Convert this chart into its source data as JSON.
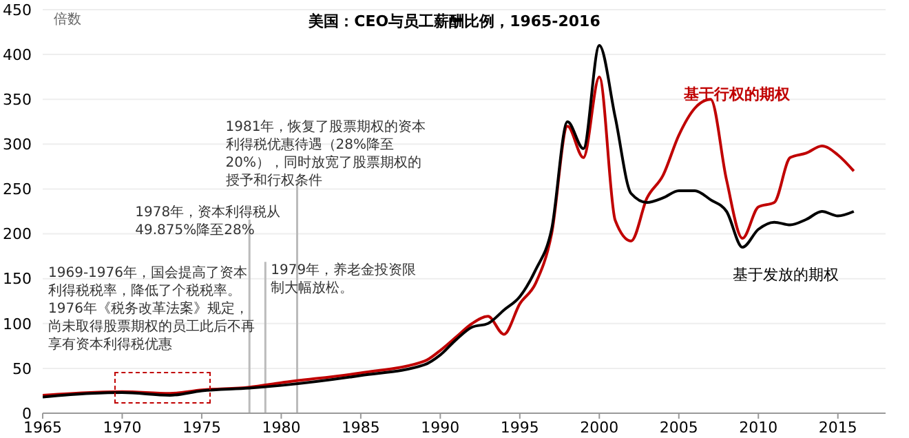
{
  "chart_data": {
    "type": "line",
    "title": "美国：CEO与员工薪酬比例，1965-2016",
    "ylabel": "倍数",
    "x": [
      1965,
      1968,
      1970,
      1973,
      1975,
      1978,
      1980,
      1985,
      1989,
      1990,
      1991,
      1992,
      1993,
      1994,
      1995,
      1996,
      1997,
      1998,
      1999,
      2000,
      2001,
      2002,
      2003,
      2004,
      2005,
      2006,
      2007,
      2008,
      2009,
      2010,
      2011,
      2012,
      2013,
      2014,
      2015,
      2016
    ],
    "series": [
      {
        "name": "基于行权的期权",
        "color": "#c00000",
        "values": [
          20,
          23,
          24,
          22,
          26,
          29,
          34,
          45,
          58,
          70,
          85,
          100,
          108,
          88,
          122,
          145,
          200,
          320,
          285,
          375,
          215,
          192,
          240,
          265,
          310,
          340,
          350,
          260,
          195,
          230,
          235,
          285,
          290,
          298,
          288,
          270
        ]
      },
      {
        "name": "基于发放的期权",
        "color": "#000000",
        "values": [
          18,
          22,
          23,
          20,
          25,
          28,
          31,
          42,
          54,
          65,
          82,
          96,
          100,
          115,
          130,
          160,
          205,
          325,
          295,
          410,
          330,
          245,
          235,
          240,
          248,
          248,
          238,
          225,
          185,
          205,
          213,
          210,
          216,
          225,
          220,
          225
        ]
      }
    ],
    "xlim": [
      1965,
      2018
    ],
    "xticks": [
      1965,
      1970,
      1975,
      1980,
      1985,
      1990,
      1995,
      2000,
      2005,
      2010,
      2015
    ],
    "ylim": [
      0,
      450
    ],
    "yticks": [
      0,
      50,
      100,
      150,
      200,
      250,
      300,
      350,
      400,
      450
    ],
    "grid": "y",
    "legend": false,
    "marker": "none",
    "line_style": "solid",
    "annotations": [
      "1969-1976年，国会提高了资本利得税税率，降低了个税税率。1976年《税务改革法案》规定，尚未取得股票期权的员工此后不再享有资本利得税优惠"
    ],
    "ref_lines": [
      {
        "axis": "x",
        "value": 1978,
        "label": "1978年，资本利得税从49.875%降至28%",
        "color": "#bbbbbb"
      },
      {
        "axis": "x",
        "value": 1979,
        "label": "1979年，养老金投资限制大幅放松。",
        "color": "#bbbbbb"
      },
      {
        "axis": "x",
        "value": 1981,
        "label": "1981年，恢复了股票期权的资本利得税优惠待遇（28%降至20%），同时放宽了股票期权的授予和行权条件",
        "color": "#bbbbbb"
      }
    ]
  }
}
